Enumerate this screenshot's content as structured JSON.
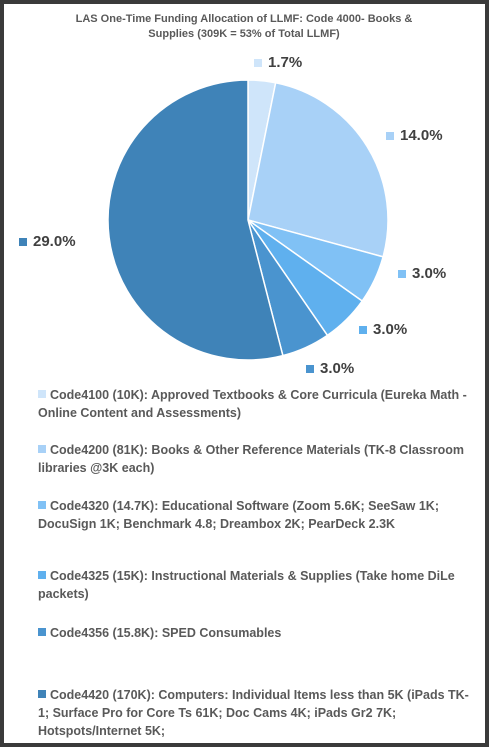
{
  "chart_data": {
    "type": "pie",
    "title": "LAS One-Time Funding Allocation of LLMF: Code 4000- Books & Supplies  (309K = 53% of Total LLMF)",
    "categories": [
      "Code4100 (10K): Approved Textbooks & Core Curricula (Eureka Math -Online Content and Assessments)",
      "Code4200 (81K): Books & Other Reference Materials (TK-8 Classroom libraries @3K each)",
      "Code4320 (14.7K): Educational Software (Zoom 5.6K; SeeSaw 1K; DocuSign 1K; Benchmark 4.8; Dreambox 2K; PearDeck 2.3K",
      "Code4325 (15K): Instructional Materials & Supplies (Take home DiLe packets)",
      "Code4356 (15.8K): SPED Consumables",
      "Code4420 (170K): Computers: Individual Items less than 5K (iPads TK-1; Surface Pro for Core Ts 61K; Doc Cams 4K; iPads Gr2 7K; Hotspots/Internet 5K;"
    ],
    "values": [
      1.7,
      14.0,
      3.0,
      3.0,
      3.0,
      29.0
    ],
    "value_labels": [
      "1.7%",
      "14.0%",
      "3.0%",
      "3.0%",
      "3.0%",
      "29.0%"
    ],
    "colors": [
      "#cfe5fa",
      "#a8d1f7",
      "#80c1f5",
      "#5fb0ee",
      "#4a94cf",
      "#3f83b8"
    ],
    "legend": "bottom"
  }
}
